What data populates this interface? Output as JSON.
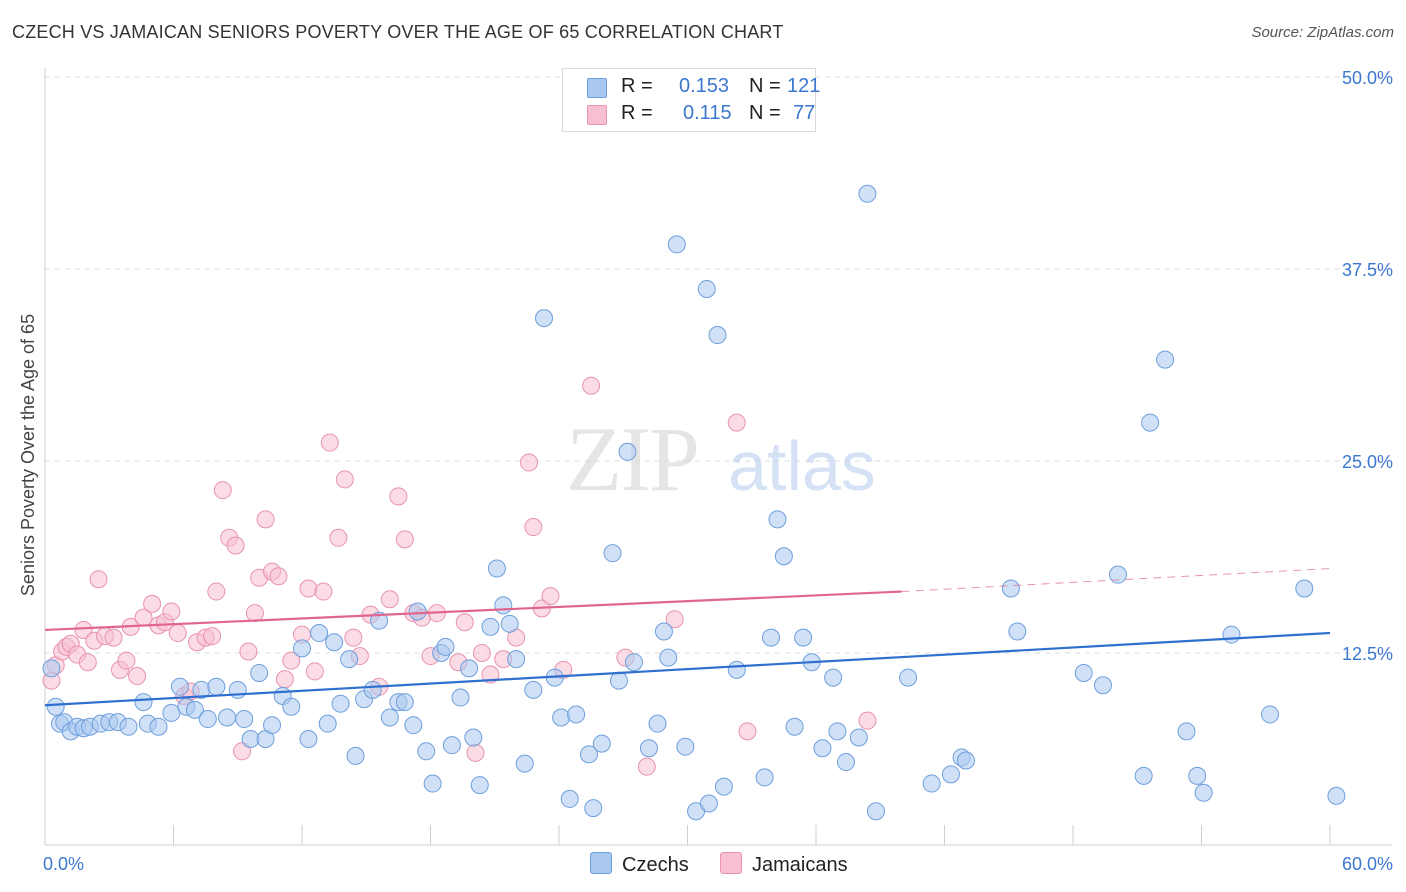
{
  "header": {
    "title": "CZECH VS JAMAICAN SENIORS POVERTY OVER THE AGE OF 65 CORRELATION CHART",
    "source": "Source: ZipAtlas.com"
  },
  "watermark": {
    "zip": "ZIP",
    "atlas": "atlas"
  },
  "legend": {
    "czechs": {
      "r_label": "R =",
      "r_value": "0.153",
      "n_label": "N =",
      "n_value": "121"
    },
    "jamaicans": {
      "r_label": "R =",
      "r_value": "0.115",
      "n_label": "N =",
      "n_value": "77"
    }
  },
  "bottom_legend": {
    "czechs": "Czechs",
    "jamaicans": "Jamaicans"
  },
  "colors": {
    "czech_fill": "#a9c8f0",
    "czech_stroke": "#6e9fdc",
    "czech_line": "#2f6fcf",
    "jamaican_fill": "#f7bfd0",
    "jamaican_stroke": "#e893ae",
    "jamaican_line": "#e0668f",
    "axis_text": "#3b78d0",
    "grid": "#dcdcdc"
  },
  "chart_data": {
    "type": "scatter",
    "title": "CZECH VS JAMAICAN SENIORS POVERTY OVER THE AGE OF 65 CORRELATION CHART",
    "xlabel": "",
    "ylabel": "Seniors Poverty Over the Age of 65",
    "xlim": [
      0,
      60
    ],
    "ylim": [
      0,
      50
    ],
    "x_tick_labels": [
      "0.0%",
      "60.0%"
    ],
    "y_tick_labels": [
      "12.5%",
      "25.0%",
      "37.5%",
      "50.0%"
    ],
    "y_ticks": [
      12.5,
      25.0,
      37.5,
      50.0
    ],
    "grid": true,
    "legend_position": "top-center",
    "series": [
      {
        "name": "Czechs",
        "trend": {
          "x": [
            0,
            60
          ],
          "y": [
            9.1,
            13.8
          ]
        },
        "points": [
          [
            0.3,
            11.5
          ],
          [
            0.5,
            9.0
          ],
          [
            0.7,
            7.9
          ],
          [
            0.9,
            8.0
          ],
          [
            1.2,
            7.4
          ],
          [
            1.5,
            7.7
          ],
          [
            1.8,
            7.6
          ],
          [
            2.1,
            7.7
          ],
          [
            2.6,
            7.9
          ],
          [
            3.0,
            8.0
          ],
          [
            3.4,
            8.0
          ],
          [
            3.9,
            7.7
          ],
          [
            4.6,
            9.3
          ],
          [
            4.8,
            7.9
          ],
          [
            5.3,
            7.7
          ],
          [
            5.9,
            8.6
          ],
          [
            6.3,
            10.3
          ],
          [
            6.6,
            9.0
          ],
          [
            7.0,
            8.8
          ],
          [
            7.3,
            10.1
          ],
          [
            7.6,
            8.2
          ],
          [
            8.0,
            10.3
          ],
          [
            8.5,
            8.3
          ],
          [
            9.0,
            10.1
          ],
          [
            9.3,
            8.2
          ],
          [
            9.6,
            6.9
          ],
          [
            10.0,
            11.2
          ],
          [
            10.3,
            6.9
          ],
          [
            10.6,
            7.8
          ],
          [
            11.1,
            9.7
          ],
          [
            11.5,
            9.0
          ],
          [
            12.0,
            12.8
          ],
          [
            12.3,
            6.9
          ],
          [
            12.8,
            13.8
          ],
          [
            13.2,
            7.9
          ],
          [
            13.5,
            13.2
          ],
          [
            13.8,
            9.2
          ],
          [
            14.2,
            12.1
          ],
          [
            14.5,
            5.8
          ],
          [
            14.9,
            9.5
          ],
          [
            15.3,
            10.1
          ],
          [
            15.6,
            14.6
          ],
          [
            16.1,
            8.3
          ],
          [
            16.5,
            9.3
          ],
          [
            16.8,
            9.3
          ],
          [
            17.2,
            7.8
          ],
          [
            17.4,
            15.2
          ],
          [
            17.8,
            6.1
          ],
          [
            18.1,
            4.0
          ],
          [
            18.5,
            12.5
          ],
          [
            18.7,
            12.9
          ],
          [
            19.0,
            6.5
          ],
          [
            19.4,
            9.6
          ],
          [
            19.8,
            11.5
          ],
          [
            20.0,
            7.0
          ],
          [
            20.3,
            3.9
          ],
          [
            20.8,
            14.2
          ],
          [
            21.1,
            18.0
          ],
          [
            21.4,
            15.6
          ],
          [
            21.7,
            14.4
          ],
          [
            22.0,
            12.1
          ],
          [
            22.4,
            5.3
          ],
          [
            22.8,
            10.1
          ],
          [
            23.3,
            34.3
          ],
          [
            23.8,
            10.9
          ],
          [
            24.1,
            8.3
          ],
          [
            24.5,
            3.0
          ],
          [
            24.8,
            8.5
          ],
          [
            25.4,
            5.9
          ],
          [
            25.6,
            2.4
          ],
          [
            26.0,
            6.6
          ],
          [
            26.5,
            19.0
          ],
          [
            26.8,
            10.7
          ],
          [
            27.2,
            25.6
          ],
          [
            27.5,
            11.9
          ],
          [
            28.2,
            6.3
          ],
          [
            28.6,
            7.9
          ],
          [
            28.9,
            13.9
          ],
          [
            29.1,
            12.2
          ],
          [
            29.5,
            39.1
          ],
          [
            29.9,
            6.4
          ],
          [
            30.4,
            2.2
          ],
          [
            30.9,
            36.2
          ],
          [
            31.0,
            2.7
          ],
          [
            31.4,
            33.2
          ],
          [
            31.7,
            3.8
          ],
          [
            32.3,
            11.4
          ],
          [
            33.6,
            4.4
          ],
          [
            33.9,
            13.5
          ],
          [
            34.2,
            21.2
          ],
          [
            34.5,
            18.8
          ],
          [
            35.0,
            7.7
          ],
          [
            35.4,
            13.5
          ],
          [
            35.8,
            11.9
          ],
          [
            36.3,
            6.3
          ],
          [
            36.8,
            10.9
          ],
          [
            37.0,
            7.4
          ],
          [
            37.4,
            5.4
          ],
          [
            38.0,
            7.0
          ],
          [
            38.8,
            2.2
          ],
          [
            40.3,
            10.9
          ],
          [
            41.4,
            4.0
          ],
          [
            42.3,
            4.6
          ],
          [
            42.8,
            5.7
          ],
          [
            43.0,
            5.5
          ],
          [
            45.1,
            16.7
          ],
          [
            45.4,
            13.9
          ],
          [
            48.5,
            11.2
          ],
          [
            49.4,
            10.4
          ],
          [
            50.1,
            17.6
          ],
          [
            51.3,
            4.5
          ],
          [
            51.6,
            27.5
          ],
          [
            52.3,
            31.6
          ],
          [
            53.3,
            7.4
          ],
          [
            53.8,
            4.5
          ],
          [
            54.1,
            3.4
          ],
          [
            55.4,
            13.7
          ],
          [
            57.2,
            8.5
          ],
          [
            58.8,
            16.7
          ],
          [
            60.3,
            3.2
          ],
          [
            38.4,
            42.4
          ]
        ]
      },
      {
        "name": "Jamaicans",
        "trend": {
          "x": [
            0,
            40
          ],
          "y": [
            14.0,
            16.5
          ]
        },
        "trend_dashed": {
          "x": [
            40,
            60
          ],
          "y": [
            16.5,
            18.0
          ]
        },
        "points": [
          [
            0.3,
            10.7
          ],
          [
            0.5,
            11.7
          ],
          [
            0.8,
            12.6
          ],
          [
            1.0,
            12.9
          ],
          [
            1.2,
            13.1
          ],
          [
            1.5,
            12.4
          ],
          [
            1.8,
            14.0
          ],
          [
            2.0,
            11.9
          ],
          [
            2.3,
            13.3
          ],
          [
            2.5,
            17.3
          ],
          [
            2.8,
            13.6
          ],
          [
            3.2,
            13.5
          ],
          [
            3.5,
            11.4
          ],
          [
            3.8,
            12.0
          ],
          [
            4.0,
            14.2
          ],
          [
            4.3,
            11.0
          ],
          [
            4.6,
            14.8
          ],
          [
            5.0,
            15.7
          ],
          [
            5.3,
            14.3
          ],
          [
            5.6,
            14.5
          ],
          [
            5.9,
            15.2
          ],
          [
            6.2,
            13.8
          ],
          [
            6.5,
            9.7
          ],
          [
            6.8,
            10.0
          ],
          [
            7.1,
            13.2
          ],
          [
            7.5,
            13.5
          ],
          [
            7.8,
            13.6
          ],
          [
            8.0,
            16.5
          ],
          [
            8.3,
            23.1
          ],
          [
            8.6,
            20.0
          ],
          [
            8.9,
            19.5
          ],
          [
            9.2,
            6.1
          ],
          [
            9.5,
            12.6
          ],
          [
            9.8,
            15.1
          ],
          [
            10.0,
            17.4
          ],
          [
            10.3,
            21.2
          ],
          [
            10.6,
            17.8
          ],
          [
            10.9,
            17.5
          ],
          [
            11.2,
            10.8
          ],
          [
            11.5,
            12.0
          ],
          [
            12.0,
            13.7
          ],
          [
            12.3,
            16.7
          ],
          [
            12.6,
            11.3
          ],
          [
            13.0,
            16.5
          ],
          [
            13.3,
            26.2
          ],
          [
            13.7,
            20.0
          ],
          [
            14.0,
            23.8
          ],
          [
            14.4,
            13.5
          ],
          [
            14.7,
            12.3
          ],
          [
            15.2,
            15.0
          ],
          [
            15.6,
            10.3
          ],
          [
            16.1,
            16.0
          ],
          [
            16.5,
            22.7
          ],
          [
            16.8,
            19.9
          ],
          [
            17.2,
            15.1
          ],
          [
            17.6,
            14.8
          ],
          [
            18.0,
            12.3
          ],
          [
            18.3,
            15.1
          ],
          [
            19.3,
            11.9
          ],
          [
            19.6,
            14.5
          ],
          [
            20.1,
            6.0
          ],
          [
            20.4,
            12.5
          ],
          [
            20.8,
            11.1
          ],
          [
            21.4,
            12.1
          ],
          [
            22.0,
            13.5
          ],
          [
            22.6,
            24.9
          ],
          [
            22.8,
            20.7
          ],
          [
            23.2,
            15.4
          ],
          [
            23.6,
            16.2
          ],
          [
            24.2,
            11.4
          ],
          [
            25.5,
            29.9
          ],
          [
            27.1,
            12.2
          ],
          [
            28.1,
            5.1
          ],
          [
            29.4,
            14.7
          ],
          [
            32.3,
            27.5
          ],
          [
            32.8,
            7.4
          ],
          [
            38.4,
            8.1
          ]
        ]
      }
    ]
  }
}
